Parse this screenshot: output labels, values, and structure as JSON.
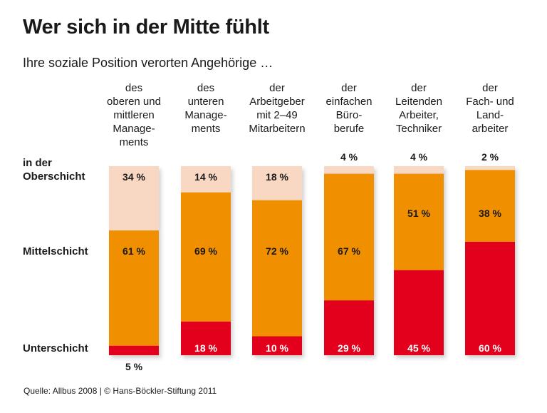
{
  "title": "Wer sich in der Mitte fühlt",
  "subtitle": "Ihre soziale Position verorten Angehörige …",
  "row_labels": {
    "top": "in der Oberschicht",
    "middle": "Mittelschicht",
    "bottom": "Unterschicht"
  },
  "source": "Quelle: Allbus 2008 | © Hans-Böckler-Stiftung 2011",
  "colors": {
    "Oberschicht": "#f9d8c3",
    "Mittelschicht": "#f08f00",
    "Unterschicht": "#e2001a"
  },
  "chart_data": {
    "type": "bar",
    "stacked": true,
    "unit": "%",
    "categories": [
      [
        "des",
        "oberen und",
        "mittleren",
        "Manage-",
        "ments"
      ],
      [
        "des",
        "unteren",
        "Manage-",
        "ments"
      ],
      [
        "der",
        "Arbeitgeber",
        "mit 2–49",
        "Mitarbeitern"
      ],
      [
        "der",
        "einfachen",
        "Büro-",
        "berufe"
      ],
      [
        "der",
        "Leitenden",
        "Arbeiter,",
        "Techniker"
      ],
      [
        "der",
        "Fach- und",
        "Land-",
        "arbeiter"
      ]
    ],
    "series": [
      {
        "name": "in der Oberschicht",
        "values": [
          34,
          14,
          18,
          4,
          4,
          2
        ]
      },
      {
        "name": "Mittelschicht",
        "values": [
          61,
          69,
          72,
          67,
          51,
          38
        ]
      },
      {
        "name": "Unterschicht",
        "values": [
          5,
          18,
          10,
          29,
          45,
          60
        ]
      }
    ]
  }
}
